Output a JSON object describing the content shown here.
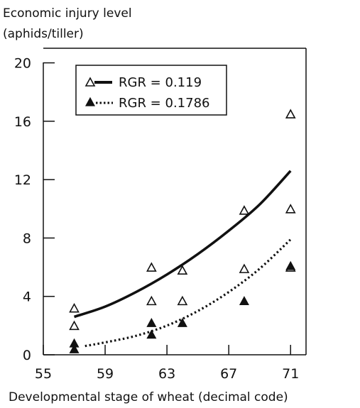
{
  "chart_data": {
    "type": "scatter",
    "ylabel": [
      "Economic injury level",
      "(aphids/tiller)"
    ],
    "xlabel": "Developmental stage of wheat (decimal code)",
    "xlim": [
      55,
      72
    ],
    "ylim": [
      0,
      21
    ],
    "x_ticks": [
      55,
      59,
      63,
      67,
      71
    ],
    "y_ticks": [
      0,
      4,
      8,
      12,
      16,
      20
    ],
    "grid": false,
    "legend_position": "top-left",
    "series": [
      {
        "name": "RGR = 0.119",
        "marker": "open-triangle",
        "line_style": "solid",
        "points": [
          [
            57,
            3.2
          ],
          [
            57,
            2.0
          ],
          [
            62,
            6.0
          ],
          [
            62,
            3.7
          ],
          [
            64,
            5.8
          ],
          [
            64,
            3.7
          ],
          [
            68,
            9.9
          ],
          [
            68,
            5.9
          ],
          [
            71,
            16.5
          ],
          [
            71,
            10.0
          ],
          [
            71,
            6.0
          ]
        ],
        "curve": [
          [
            57,
            2.6
          ],
          [
            59,
            3.3
          ],
          [
            61,
            4.3
          ],
          [
            63,
            5.5
          ],
          [
            65,
            6.9
          ],
          [
            67,
            8.5
          ],
          [
            69,
            10.3
          ],
          [
            71,
            12.6
          ]
        ]
      },
      {
        "name": "RGR = 0.1786",
        "marker": "filled-triangle",
        "line_style": "dotted",
        "points": [
          [
            57,
            0.8
          ],
          [
            57,
            0.4
          ],
          [
            62,
            2.2
          ],
          [
            62,
            1.4
          ],
          [
            64,
            2.2
          ],
          [
            68,
            3.7
          ],
          [
            71,
            6.1
          ]
        ],
        "curve": [
          [
            57.7,
            0.6
          ],
          [
            59,
            0.85
          ],
          [
            61,
            1.3
          ],
          [
            63,
            2.0
          ],
          [
            65,
            3.0
          ],
          [
            67,
            4.3
          ],
          [
            69,
            5.9
          ],
          [
            71,
            7.9
          ]
        ]
      }
    ]
  }
}
